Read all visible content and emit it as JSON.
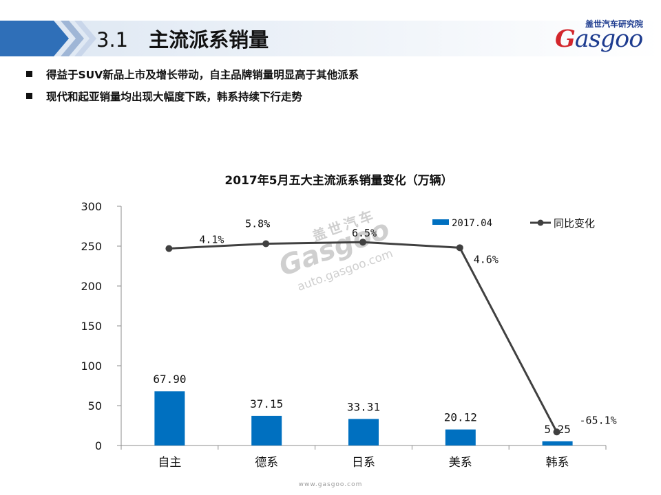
{
  "slide": {
    "section_number": "3.1",
    "title": "主流派系销量",
    "bullets": [
      "得益于SUV新品上市及增长带动，自主品牌销量明显高于其他派系",
      "现代和起亚销量均出现大幅度下跌，韩系持续下行走势"
    ]
  },
  "logo": {
    "cn": "盖世汽车研究院",
    "en_first": "G",
    "en_rest": "asgoo"
  },
  "watermark": {
    "cn": "盖世汽车",
    "en": "Gasgoo",
    "url": "auto.gasgoo.com"
  },
  "footer": {
    "url": "www.gasgoo.com"
  },
  "colors": {
    "bar": "#0070C0",
    "line": "#404040",
    "header_left": "#2f6fb8",
    "header_fade": "#dce6f2",
    "logo_blue": "#1d3b8f",
    "logo_red": "#d3262c"
  },
  "chart_data": {
    "type": "bar",
    "title": "2017年5月五大主流派系销量变化（万辆）",
    "categories": [
      "自主",
      "德系",
      "日系",
      "美系",
      "韩系"
    ],
    "ylim": [
      0,
      300
    ],
    "yticks": [
      0,
      50,
      100,
      150,
      200,
      250,
      300
    ],
    "grid": false,
    "legend_position": "top-right",
    "series": [
      {
        "name": "2017.04",
        "type": "bar",
        "values": [
          67.9,
          37.15,
          33.31,
          20.12,
          5.25
        ],
        "labels": [
          "67.90",
          "37.15",
          "33.31",
          "20.12",
          "5.25"
        ]
      },
      {
        "name": "同比变化",
        "type": "line",
        "values": [
          4.1,
          5.8,
          6.5,
          4.6,
          -65.1
        ],
        "labels": [
          "4.1%",
          "5.8%",
          "6.5%",
          "4.6%",
          "-65.1%"
        ],
        "plotted_on_left_axis": [
          247,
          253,
          255,
          248,
          17
        ]
      }
    ]
  }
}
